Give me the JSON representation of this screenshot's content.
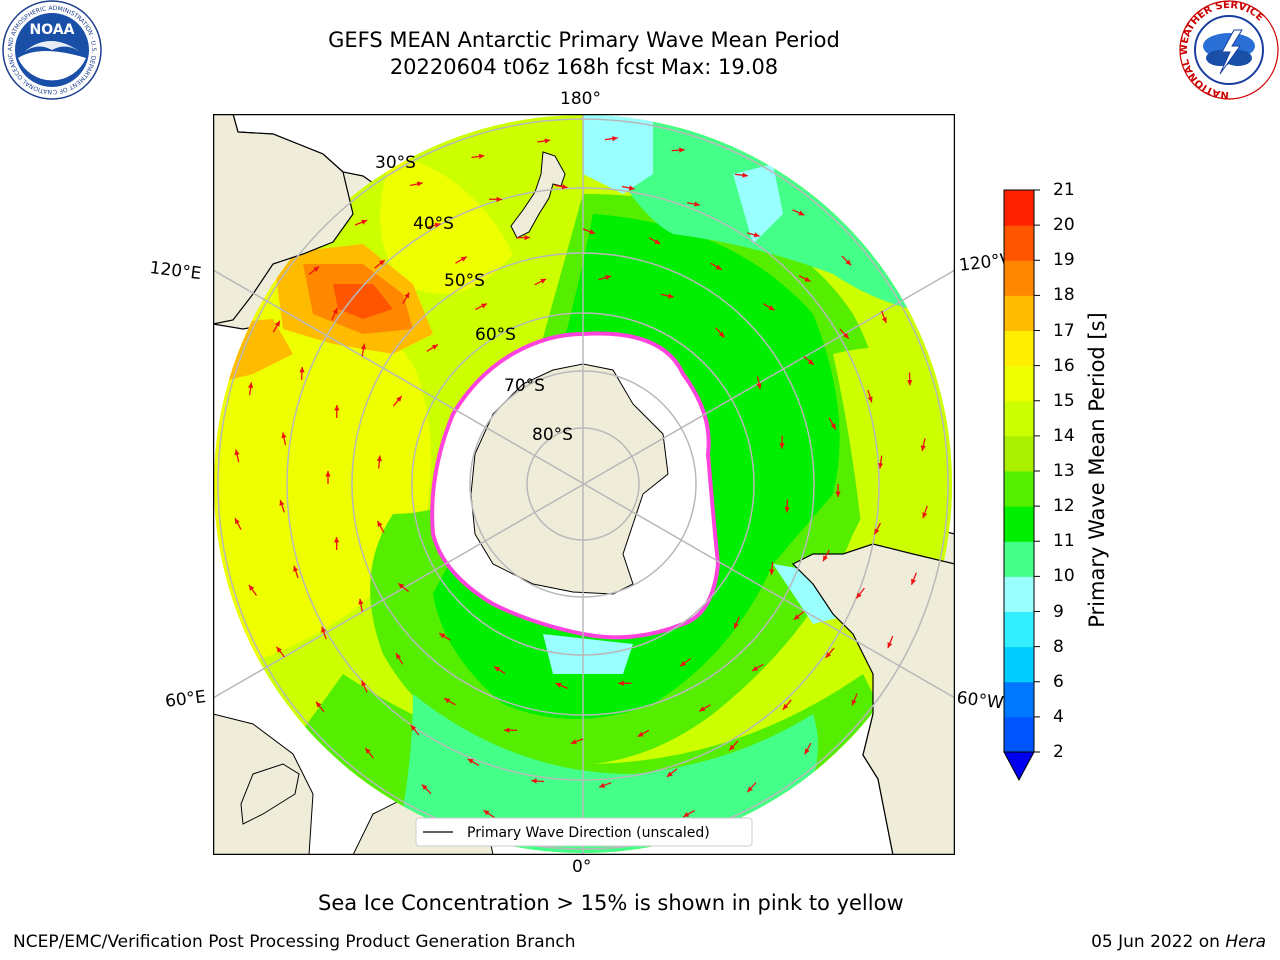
{
  "header": {
    "title_line1": "GEFS MEAN Antarctic Primary Wave Mean Period",
    "title_line2": "20220604 t06z 168h fcst   Max: 19.08",
    "noaa_logo_text": "NOAA",
    "noaa_ring_text": "NATIONAL OCEANIC AND ATMOSPHERIC ADMINISTRATION · U.S. DEPARTMENT OF COMMERCE",
    "nws_ring_text": "NATIONAL WEATHER SERVICE"
  },
  "map": {
    "longitude_labels": {
      "top": "180°",
      "bottom": "0°",
      "upper_left": "120°E",
      "upper_right": "120°W",
      "lower_left": "60°E",
      "lower_right": "60°W"
    },
    "latitude_labels": [
      "30°S",
      "40°S",
      "50°S",
      "60°S",
      "70°S",
      "80°S"
    ],
    "legend_label": "Primary Wave Direction (unscaled)",
    "colors": {
      "land": "#efedda",
      "ice": "#ffffff",
      "ice_edge": "#ff44dd",
      "arrow": "#ee1111",
      "grid": "#b8b8b8"
    }
  },
  "colorbar": {
    "title": "Primary Wave Mean Period [s]",
    "ticks": [
      "2",
      "4",
      "6",
      "8",
      "9",
      "10",
      "11",
      "12",
      "13",
      "14",
      "15",
      "16",
      "17",
      "18",
      "19",
      "20",
      "21"
    ],
    "colors": [
      "#0055ff",
      "#0077ff",
      "#00ccff",
      "#33eeff",
      "#99ffff",
      "#44ff88",
      "#00ee00",
      "#55ee00",
      "#aaee00",
      "#ccff00",
      "#eeff00",
      "#ffee00",
      "#ffbb00",
      "#ff8800",
      "#ff5500",
      "#ff2200",
      "#ff0000"
    ],
    "extend_color": "#0000ee"
  },
  "caption": "Sea Ice Concentration > 15% is shown in pink to yellow",
  "footer": {
    "left": "NCEP/EMC/Verification Post Processing Product Generation Branch",
    "right_date": "05 Jun 2022 on",
    "right_host": "Hera"
  }
}
